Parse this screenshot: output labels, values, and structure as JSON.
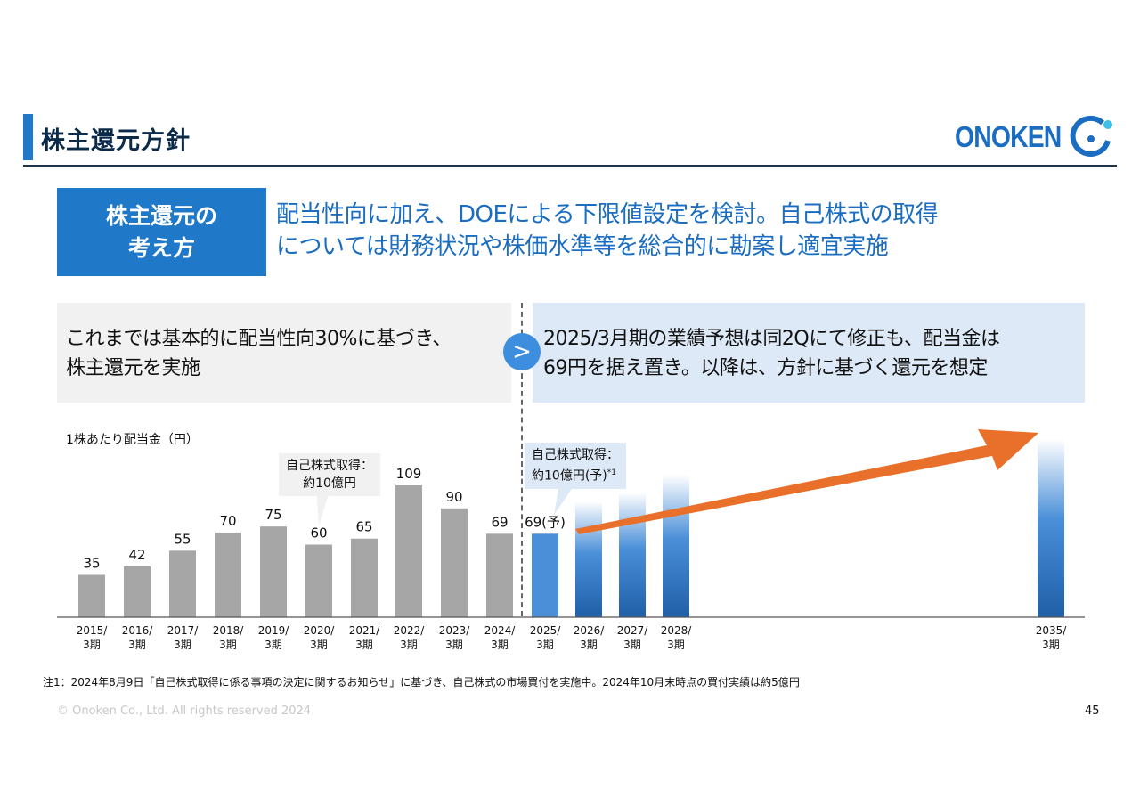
{
  "header": {
    "title": "株主還元方針",
    "logo_text": "ONOKEN"
  },
  "concept": {
    "label_line1": "株主還元の",
    "label_line2": "考え方",
    "text_line1": "配当性向に加え、DOEによる下限値設定を検討。自己株式の取得",
    "text_line2": "については財務状況や株価水準等を総合的に勘案し適宜実施"
  },
  "panels": {
    "left_line1": "これまでは基本的に配当性向30%に基づき、",
    "left_line2": "株主還元を実施",
    "arrow_symbol": ">",
    "right_line1": "2025/3月期の業績予想は同2Qにて修正も、配当金は",
    "right_line2": "69円を据え置き。以降は、方針に基づく還元を想定"
  },
  "callouts": {
    "past_line1": "自己株式取得：",
    "past_line2": "約10億円",
    "future_line1": "自己株式取得：",
    "future_line2": "約10億円(予)",
    "future_sup": "*1"
  },
  "chart_data": {
    "type": "bar",
    "ylabel": "1株あたり配当金（円）",
    "categories": [
      "2015/\n3期",
      "2016/\n3期",
      "2017/\n3期",
      "2018/\n3期",
      "2019/\n3期",
      "2020/\n3期",
      "2021/\n3期",
      "2022/\n3期",
      "2023/\n3期",
      "2024/\n3期",
      "2025/\n3期",
      "2026/\n3期",
      "2027/\n3期",
      "2028/\n3期",
      "2035/\n3期"
    ],
    "values": [
      35,
      42,
      55,
      70,
      75,
      60,
      65,
      109,
      90,
      69,
      69,
      null,
      null,
      null,
      null
    ],
    "value_labels": [
      "35",
      "42",
      "55",
      "70",
      "75",
      "60",
      "65",
      "109",
      "90",
      "69",
      "69(予)",
      "",
      "",
      "",
      ""
    ],
    "ylim": [
      0,
      120
    ],
    "colors": {
      "actual": "#a6a6a6",
      "forecast": "#4a8fd8",
      "future_gradient": "#2a6cb8",
      "arrow": "#e8702a"
    }
  },
  "note": "注1：2024年8月9日「自己株式取得に係る事項の決定に関するお知らせ」に基づき、自己株式の市場買付を実施中。2024年10月末時点の買付実績は約5億円",
  "footer": {
    "copyright": "© Onoken Co., Ltd. All rights reserved 2024",
    "page": "45"
  }
}
